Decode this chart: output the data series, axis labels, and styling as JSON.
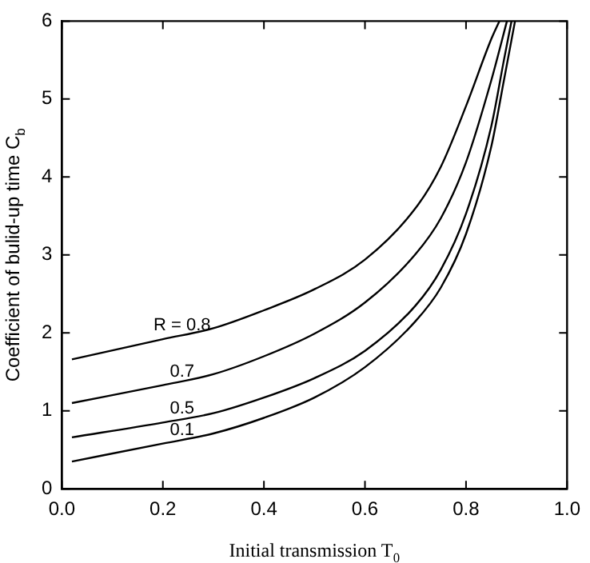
{
  "chart_data": {
    "type": "line",
    "xlabel": "Initial transmission T$_{0}$",
    "ylabel": "Coefficient of bulid-up time C$_{b}$",
    "xlim": [
      0,
      1
    ],
    "ylim": [
      0,
      6
    ],
    "xticks": [
      {
        "value": 0,
        "label": "0.0"
      },
      0.2,
      0.4,
      0.6,
      0.8,
      {
        "value": 1,
        "label": "1.0"
      }
    ],
    "yticks": [
      0,
      1,
      2,
      3,
      4,
      5,
      6
    ],
    "grid": false,
    "legend": false,
    "marker": "none",
    "line_style": "solid",
    "series": [
      {
        "name": "R = 0.8",
        "color": "#000000",
        "x": [
          0.02,
          0.2,
          0.3,
          0.4,
          0.5,
          0.6,
          0.7,
          0.75,
          0.8,
          0.85,
          0.866
        ],
        "values": [
          1.66,
          1.92,
          2.06,
          2.29,
          2.56,
          2.94,
          3.6,
          4.13,
          4.91,
          5.77,
          6
        ]
      },
      {
        "name": "0.7",
        "color": "#000000",
        "x": [
          0.02,
          0.2,
          0.3,
          0.4,
          0.5,
          0.6,
          0.7,
          0.75,
          0.8,
          0.85,
          0.881
        ],
        "values": [
          1.1,
          1.33,
          1.47,
          1.7,
          1.99,
          2.39,
          3.01,
          3.47,
          4.19,
          5.24,
          6
        ]
      },
      {
        "name": "0.5",
        "color": "#000000",
        "x": [
          0.02,
          0.2,
          0.3,
          0.4,
          0.5,
          0.6,
          0.7,
          0.75,
          0.8,
          0.85,
          0.875,
          0.89
        ],
        "values": [
          0.66,
          0.85,
          0.97,
          1.17,
          1.42,
          1.77,
          2.35,
          2.81,
          3.53,
          4.65,
          5.5,
          6
        ]
      },
      {
        "name": "0.1",
        "color": "#000000",
        "x": [
          0.02,
          0.2,
          0.3,
          0.4,
          0.5,
          0.6,
          0.7,
          0.75,
          0.8,
          0.85,
          0.875,
          0.897
        ],
        "values": [
          0.35,
          0.58,
          0.71,
          0.91,
          1.17,
          1.56,
          2.15,
          2.58,
          3.27,
          4.39,
          5.24,
          6
        ]
      }
    ]
  }
}
